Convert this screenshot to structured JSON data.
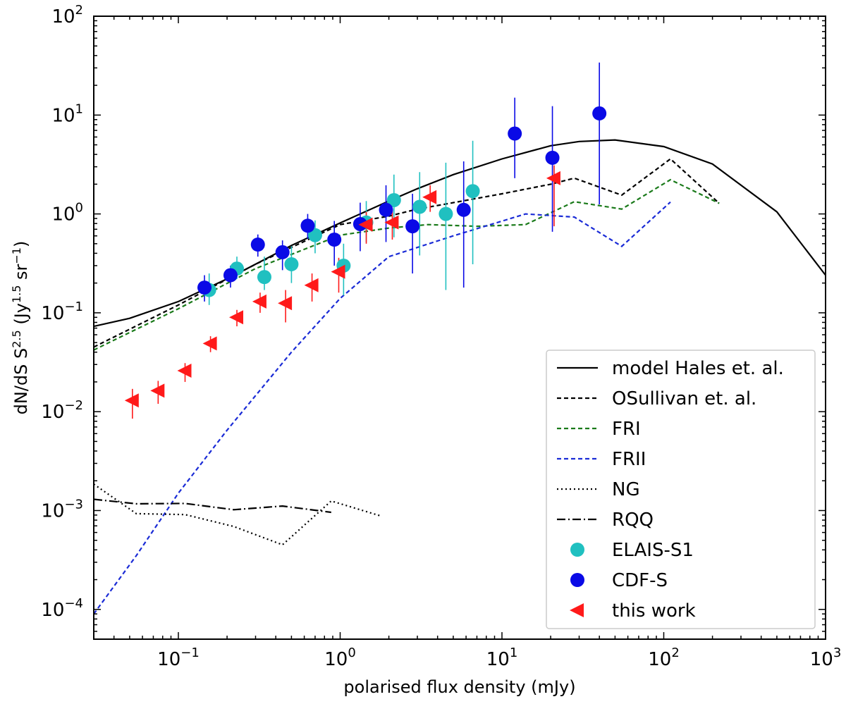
{
  "chart_data": {
    "type": "scatter",
    "title": "",
    "xlabel": "polarised flux density (mJy)",
    "ylabel": "dN/dS S^2.5 (Jy^1.5 sr^-1)",
    "xscale": "log",
    "yscale": "log",
    "xlim": [
      0.03,
      1000
    ],
    "ylim": [
      5e-05,
      100
    ],
    "x_ticks": [
      {
        "value": 0.1,
        "base": "10",
        "exp": "−1"
      },
      {
        "value": 1,
        "base": "10",
        "exp": "0"
      },
      {
        "value": 10,
        "base": "10",
        "exp": "1"
      },
      {
        "value": 100,
        "base": "10",
        "exp": "2"
      },
      {
        "value": 1000,
        "base": "10",
        "exp": "3"
      }
    ],
    "y_ticks": [
      {
        "value": 0.0001,
        "base": "10",
        "exp": "−4"
      },
      {
        "value": 0.001,
        "base": "10",
        "exp": "−3"
      },
      {
        "value": 0.01,
        "base": "10",
        "exp": "−2"
      },
      {
        "value": 0.1,
        "base": "10",
        "exp": "−1"
      },
      {
        "value": 1,
        "base": "10",
        "exp": "0"
      },
      {
        "value": 10,
        "base": "10",
        "exp": "1"
      },
      {
        "value": 100,
        "base": "10",
        "exp": "2"
      }
    ],
    "grid": false,
    "legend_position": "bottom-right",
    "lines": [
      {
        "name": "model Hales et. al.",
        "color": "#000000",
        "dash": "solid",
        "x": [
          0.03,
          0.05,
          0.1,
          0.2,
          0.3,
          0.5,
          1,
          2,
          3,
          5,
          10,
          20,
          30,
          50,
          100,
          200,
          500,
          1000
        ],
        "y": [
          0.073,
          0.088,
          0.13,
          0.22,
          0.31,
          0.48,
          0.81,
          1.35,
          1.8,
          2.5,
          3.6,
          4.9,
          5.4,
          5.6,
          4.8,
          3.2,
          1.05,
          0.24
        ]
      },
      {
        "name": "OSullivan et. al.",
        "color": "#000000",
        "dash": "6,4",
        "x": [
          0.03,
          0.1,
          0.3,
          1,
          2,
          3,
          5,
          10,
          20,
          28,
          55,
          110,
          220
        ],
        "y": [
          0.045,
          0.12,
          0.31,
          0.78,
          0.95,
          1.12,
          1.3,
          1.6,
          2.0,
          2.3,
          1.55,
          3.6,
          1.28
        ]
      },
      {
        "name": "FRI",
        "color": "#1a7a1a",
        "dash": "6,4",
        "x": [
          0.03,
          0.1,
          0.3,
          1,
          2,
          3.5,
          7,
          14,
          28,
          55,
          110,
          220
        ],
        "y": [
          0.042,
          0.11,
          0.28,
          0.61,
          0.72,
          0.78,
          0.75,
          0.78,
          1.33,
          1.12,
          2.22,
          1.28
        ]
      },
      {
        "name": "FRII",
        "color": "#1a2bd6",
        "dash": "6,4",
        "x": [
          0.03,
          0.055,
          0.1,
          0.2,
          0.5,
          1,
          2,
          5,
          14,
          28,
          55,
          110
        ],
        "y": [
          9e-05,
          0.00035,
          0.0015,
          0.0065,
          0.04,
          0.14,
          0.37,
          0.6,
          1.0,
          0.93,
          0.47,
          1.32
        ]
      },
      {
        "name": "NG",
        "color": "#000000",
        "dash": "2,4",
        "x": [
          0.03,
          0.055,
          0.11,
          0.22,
          0.44,
          0.88,
          1.75
        ],
        "y": [
          0.00185,
          0.00093,
          0.00091,
          0.00069,
          0.00045,
          0.00125,
          0.00089
        ]
      },
      {
        "name": "RQQ",
        "color": "#000000",
        "dash": "12,4,2,4",
        "x": [
          0.03,
          0.055,
          0.11,
          0.22,
          0.44,
          0.88
        ],
        "y": [
          0.0013,
          0.00117,
          0.00118,
          0.00102,
          0.00111,
          0.00096
        ]
      }
    ],
    "points": [
      {
        "name": "ELAIS-S1",
        "color": "#20c0c0",
        "marker": "circle",
        "x": [
          0.155,
          0.23,
          0.34,
          0.5,
          0.7,
          1.05,
          1.45,
          2.15,
          3.1,
          4.5,
          6.6
        ],
        "y": [
          0.17,
          0.28,
          0.23,
          0.31,
          0.61,
          0.3,
          0.82,
          1.38,
          1.18,
          1.0,
          1.7
        ],
        "err_low": [
          0.12,
          0.22,
          0.17,
          0.2,
          0.4,
          0.15,
          0.52,
          0.58,
          0.38,
          0.17,
          0.31
        ],
        "err_high": [
          0.25,
          0.37,
          0.37,
          0.47,
          0.86,
          0.5,
          1.35,
          2.5,
          2.65,
          3.3,
          5.5
        ]
      },
      {
        "name": "CDF-S",
        "color": "#0a0ae6",
        "marker": "circle",
        "x": [
          0.145,
          0.21,
          0.31,
          0.44,
          0.63,
          0.92,
          1.33,
          1.92,
          2.8,
          5.8,
          12,
          20.5,
          40
        ],
        "y": [
          0.18,
          0.24,
          0.49,
          0.41,
          0.76,
          0.55,
          0.79,
          1.1,
          0.75,
          1.1,
          6.5,
          3.7,
          10.4
        ],
        "err_low": [
          0.13,
          0.18,
          0.37,
          0.27,
          0.56,
          0.3,
          0.42,
          0.52,
          0.25,
          0.18,
          2.3,
          0.66,
          1.25
        ],
        "err_high": [
          0.24,
          0.3,
          0.62,
          0.54,
          1.0,
          0.85,
          1.3,
          1.95,
          1.6,
          3.4,
          15,
          12.3,
          34
        ]
      },
      {
        "name": "this work",
        "color": "#ff1a1a",
        "marker": "triangle-left",
        "x": [
          0.052,
          0.075,
          0.11,
          0.158,
          0.23,
          0.32,
          0.46,
          0.67,
          0.98,
          1.45,
          2.1,
          3.6,
          21
        ],
        "y": [
          0.013,
          0.0163,
          0.026,
          0.049,
          0.09,
          0.13,
          0.125,
          0.19,
          0.26,
          0.78,
          0.82,
          1.48,
          2.3
        ],
        "err_low": [
          0.0085,
          0.012,
          0.02,
          0.04,
          0.073,
          0.1,
          0.08,
          0.13,
          0.16,
          0.5,
          0.55,
          1.05,
          0.75
        ],
        "err_high": [
          0.017,
          0.0205,
          0.031,
          0.058,
          0.107,
          0.16,
          0.17,
          0.25,
          0.36,
          1.05,
          1.1,
          1.95,
          3.1
        ]
      }
    ],
    "legend": [
      {
        "label": "model Hales et. al.",
        "kind": "line",
        "color": "#000000",
        "dash": "solid"
      },
      {
        "label": "OSullivan et. al.",
        "kind": "line",
        "color": "#000000",
        "dash": "6,4"
      },
      {
        "label": "FRI",
        "kind": "line",
        "color": "#1a7a1a",
        "dash": "6,4"
      },
      {
        "label": "FRII",
        "kind": "line",
        "color": "#1a2bd6",
        "dash": "6,4"
      },
      {
        "label": "NG",
        "kind": "line",
        "color": "#000000",
        "dash": "2,4"
      },
      {
        "label": "RQQ",
        "kind": "line",
        "color": "#000000",
        "dash": "12,4,2,4"
      },
      {
        "label": "ELAIS-S1",
        "kind": "circle",
        "color": "#20c0c0"
      },
      {
        "label": "CDF-S",
        "kind": "circle",
        "color": "#0a0ae6"
      },
      {
        "label": "this work",
        "kind": "triangle-left",
        "color": "#ff1a1a"
      }
    ]
  }
}
